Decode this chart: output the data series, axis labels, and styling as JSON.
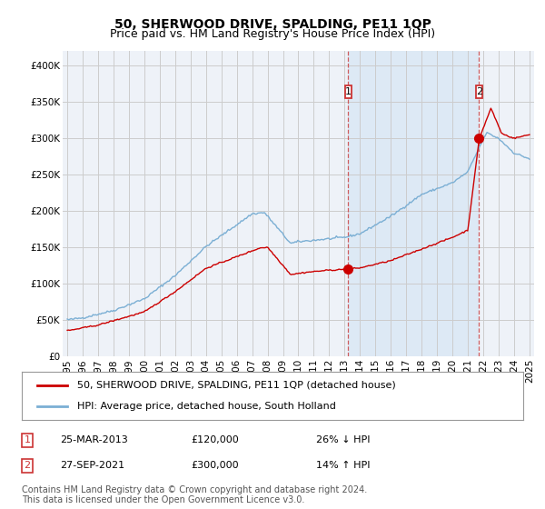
{
  "title": "50, SHERWOOD DRIVE, SPALDING, PE11 1QP",
  "subtitle": "Price paid vs. HM Land Registry's House Price Index (HPI)",
  "xlim_start": 1994.7,
  "xlim_end": 2025.3,
  "ylim": [
    0,
    420000
  ],
  "red_line_label": "50, SHERWOOD DRIVE, SPALDING, PE11 1QP (detached house)",
  "blue_line_label": "HPI: Average price, detached house, South Holland",
  "annotation1_date": "25-MAR-2013",
  "annotation1_price": "£120,000",
  "annotation1_pct": "26% ↓ HPI",
  "annotation2_date": "27-SEP-2021",
  "annotation2_price": "£300,000",
  "annotation2_pct": "14% ↑ HPI",
  "footnote": "Contains HM Land Registry data © Crown copyright and database right 2024.\nThis data is licensed under the Open Government Licence v3.0.",
  "red_color": "#cc0000",
  "blue_color": "#7bafd4",
  "vline_color": "#cc4444",
  "annotation_box_color": "#cc3333",
  "grid_color": "#cccccc",
  "background_color": "#ffffff",
  "plot_bg_color": "#eef2f8",
  "shaded_bg_color": "#dce8f5",
  "title_fontsize": 10,
  "subtitle_fontsize": 9,
  "tick_fontsize": 7.5,
  "legend_fontsize": 8,
  "annotation_fontsize": 8,
  "footnote_fontsize": 7
}
